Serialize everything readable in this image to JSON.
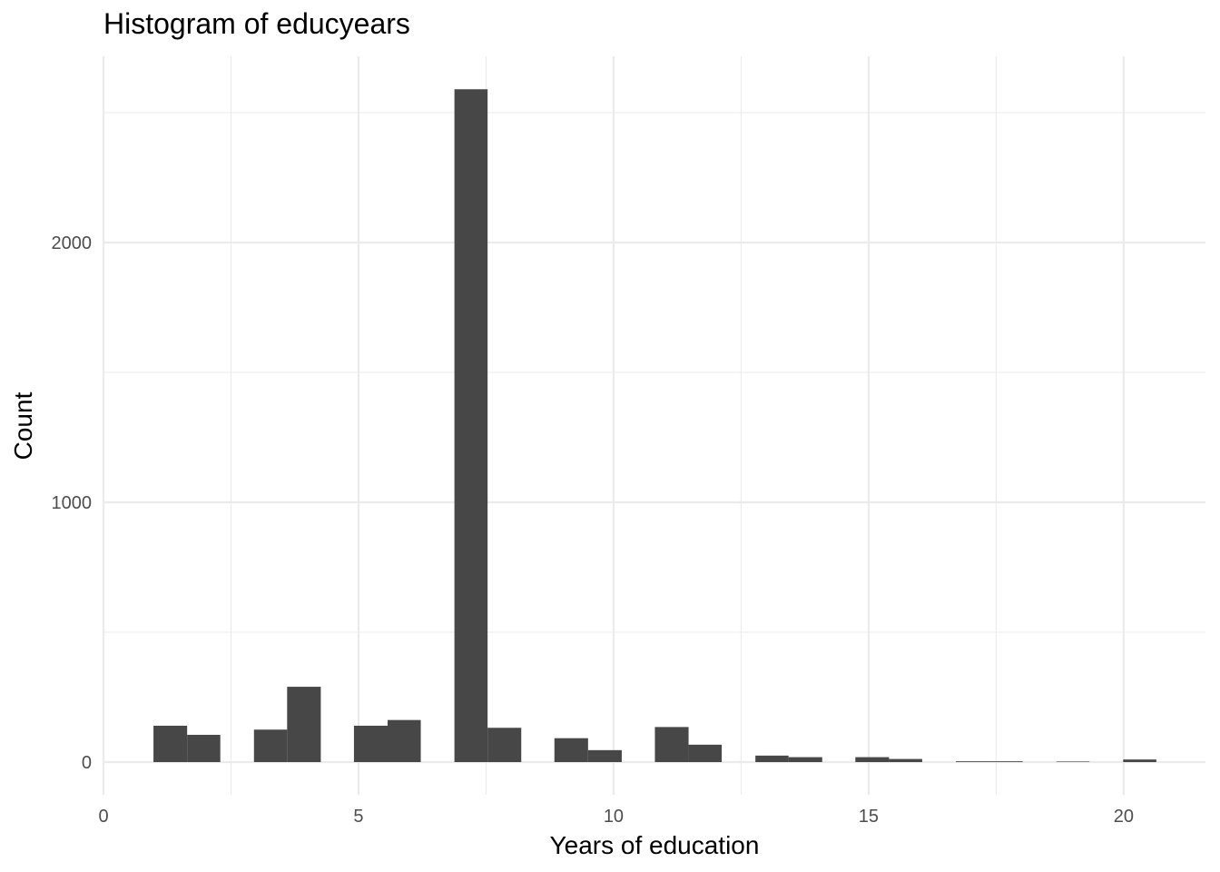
{
  "chart_data": {
    "type": "bar",
    "title": "Histogram of educyears",
    "xlabel": "Years of education",
    "ylabel": "Count",
    "xlim": [
      0,
      21.5
    ],
    "ylim": [
      -100,
      2620
    ],
    "x_ticks": [
      0,
      5,
      10,
      15,
      20
    ],
    "x_tick_labels": [
      "0",
      "5",
      "10",
      "15",
      "20"
    ],
    "y_ticks": [
      0,
      1000,
      2000
    ],
    "y_tick_labels": [
      "0",
      "1000",
      "2000"
    ],
    "grid": true,
    "bar_color": "#474747",
    "gridline_color": "#ebebeb",
    "bin_width": 0.655,
    "bins": [
      {
        "start": 0.98,
        "end": 1.64,
        "count": 140
      },
      {
        "start": 1.64,
        "end": 2.29,
        "count": 105
      },
      {
        "start": 2.95,
        "end": 3.6,
        "count": 125
      },
      {
        "start": 3.6,
        "end": 4.26,
        "count": 290
      },
      {
        "start": 4.91,
        "end": 5.57,
        "count": 140
      },
      {
        "start": 5.57,
        "end": 6.22,
        "count": 162
      },
      {
        "start": 6.88,
        "end": 7.53,
        "count": 2590
      },
      {
        "start": 7.53,
        "end": 8.19,
        "count": 132
      },
      {
        "start": 8.84,
        "end": 9.5,
        "count": 92
      },
      {
        "start": 9.5,
        "end": 10.16,
        "count": 46
      },
      {
        "start": 10.81,
        "end": 11.47,
        "count": 135
      },
      {
        "start": 11.47,
        "end": 12.12,
        "count": 67
      },
      {
        "start": 12.78,
        "end": 13.43,
        "count": 25
      },
      {
        "start": 13.43,
        "end": 14.09,
        "count": 19
      },
      {
        "start": 14.74,
        "end": 15.4,
        "count": 19
      },
      {
        "start": 15.4,
        "end": 16.05,
        "count": 12
      },
      {
        "start": 16.71,
        "end": 17.37,
        "count": 3
      },
      {
        "start": 17.37,
        "end": 18.02,
        "count": 3
      },
      {
        "start": 18.68,
        "end": 19.33,
        "count": 2
      },
      {
        "start": 19.99,
        "end": 20.64,
        "count": 10
      }
    ]
  }
}
